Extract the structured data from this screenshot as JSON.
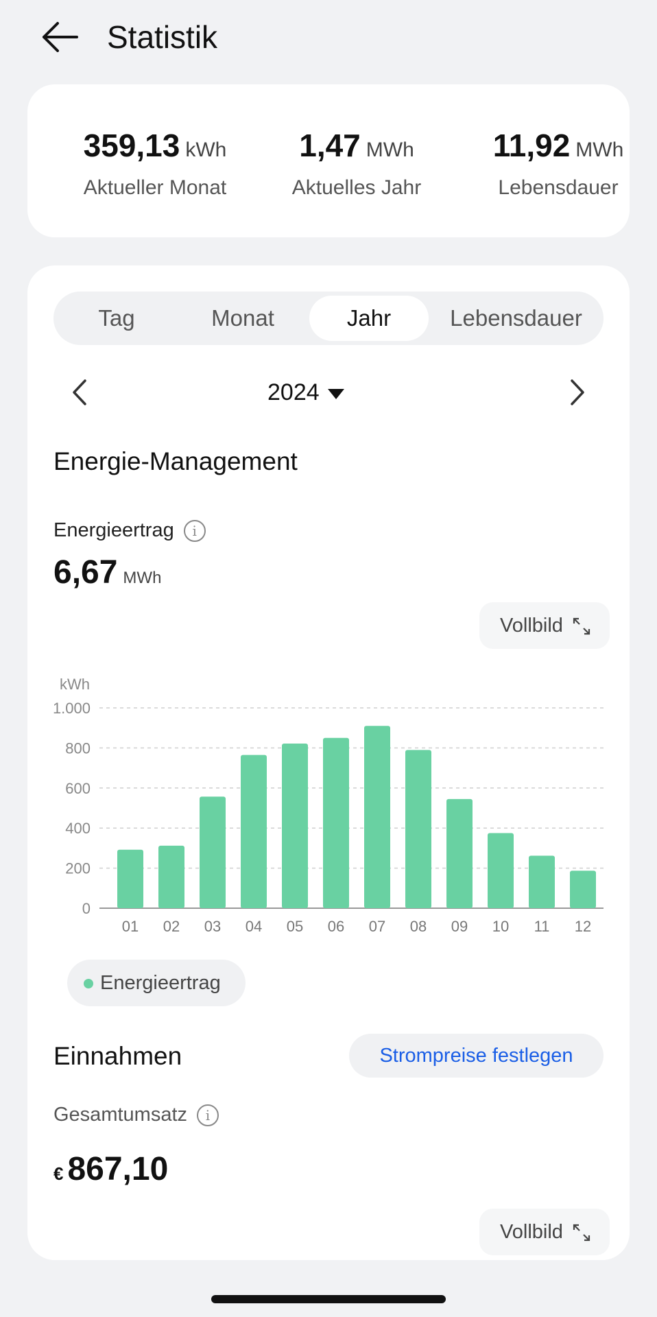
{
  "header": {
    "title": "Statistik"
  },
  "summary": [
    {
      "value": "359,13",
      "unit": "kWh",
      "label": "Aktueller Monat"
    },
    {
      "value": "1,47",
      "unit": "MWh",
      "label": "Aktuelles Jahr"
    },
    {
      "value": "11,92",
      "unit": "MWh",
      "label": "Lebensdauer"
    }
  ],
  "tabs": [
    {
      "label": "Tag"
    },
    {
      "label": "Monat"
    },
    {
      "label": "Jahr",
      "active": true
    },
    {
      "label": "Lebensdauer"
    }
  ],
  "date_selector": {
    "value": "2024"
  },
  "energy": {
    "section_title": "Energie-Management",
    "metric_label": "Energieertrag",
    "value": "6,67",
    "unit": "MWh",
    "fullscreen_label": "Vollbild",
    "legend_label": "Energieertrag"
  },
  "chart_data": {
    "type": "bar",
    "ylabel": "kWh",
    "categories": [
      "01",
      "02",
      "03",
      "04",
      "05",
      "06",
      "07",
      "08",
      "09",
      "10",
      "11",
      "12"
    ],
    "series": [
      {
        "name": "Energieertrag",
        "values": [
          292,
          312,
          557,
          765,
          822,
          850,
          910,
          790,
          545,
          375,
          262,
          187
        ]
      }
    ],
    "ylim": [
      0,
      1000
    ],
    "yticks": [
      0,
      200,
      400,
      600,
      800,
      1000
    ],
    "ytick_labels": [
      "0",
      "200",
      "400",
      "600",
      "800",
      "1.000"
    ],
    "color": "#69d1a2",
    "grid": true
  },
  "income": {
    "section_title": "Einnahmen",
    "price_button": "Strompreise festlegen",
    "metric_label": "Gesamtumsatz",
    "currency": "€",
    "value": "867,10",
    "fullscreen_label": "Vollbild"
  }
}
